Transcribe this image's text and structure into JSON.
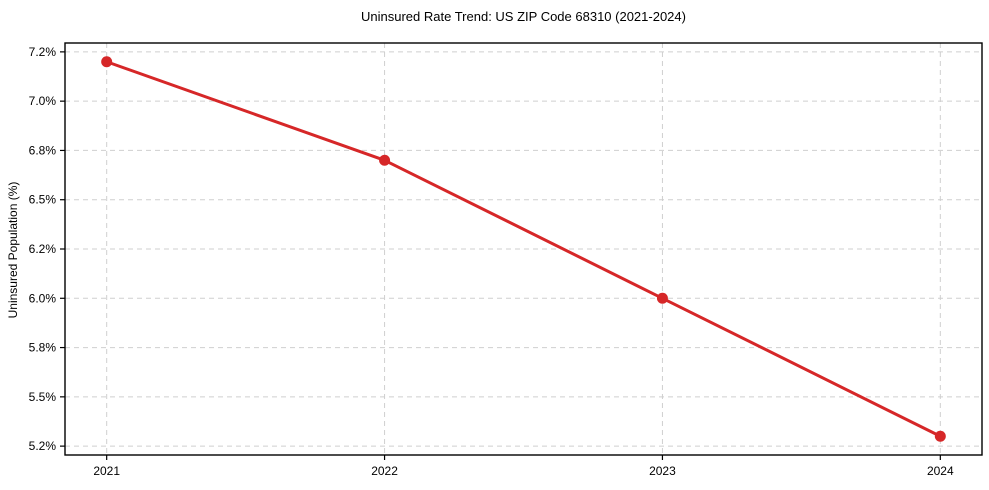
{
  "chart_data": {
    "type": "line",
    "title": "Uninsured Rate Trend: US ZIP Code 68310 (2021-2024)",
    "xlabel": "",
    "ylabel": "Uninsured Population (%)",
    "series": [
      {
        "name": "Uninsured rate",
        "x": [
          2021,
          2022,
          2023,
          2024
        ],
        "values": [
          7.2,
          6.7,
          6.0,
          5.3
        ]
      }
    ],
    "xlim": [
      2020.85,
      2024.15
    ],
    "ylim": [
      5.205,
      7.295
    ],
    "xticks": {
      "values": [
        2021,
        2022,
        2023,
        2024
      ],
      "labels": [
        "2021",
        "2022",
        "2023",
        "2024"
      ]
    },
    "yticks": {
      "values": [
        5.25,
        5.5,
        5.75,
        6.0,
        6.25,
        6.5,
        6.75,
        7.0,
        7.25
      ],
      "labels": [
        "5.2%",
        "5.5%",
        "5.8%",
        "6.0%",
        "6.2%",
        "6.5%",
        "6.8%",
        "7.0%",
        "7.2%"
      ]
    },
    "grid": true,
    "grid_style": "dashed",
    "legend": false,
    "colors": {
      "line": "#d62728",
      "marker": "#d62728",
      "grid": "#cfcfcf",
      "spine": "#000000",
      "text": "#000000",
      "background": "#ffffff"
    },
    "marker_radius": 5.5,
    "line_width": 3
  }
}
